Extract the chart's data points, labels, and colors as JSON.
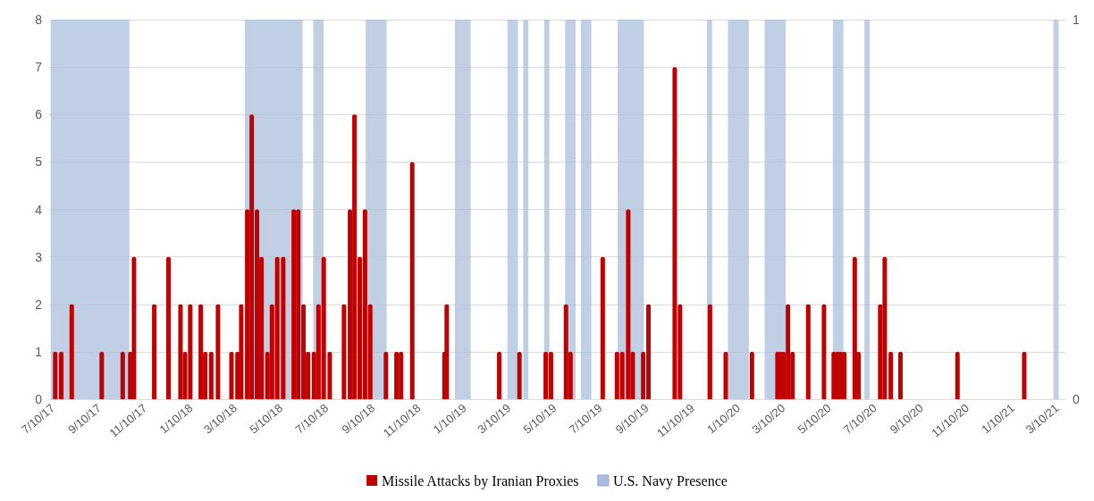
{
  "chart_data": {
    "type": "bar",
    "xlim": [
      "2017-07-05",
      "2021-03-21"
    ],
    "xticks": [
      {
        "value": "2017-07-10",
        "label": "7/10/17"
      },
      {
        "value": "2017-09-10",
        "label": "9/10/17"
      },
      {
        "value": "2017-11-10",
        "label": "11/10/17"
      },
      {
        "value": "2018-01-10",
        "label": "1/10/18"
      },
      {
        "value": "2018-03-10",
        "label": "3/10/18"
      },
      {
        "value": "2018-05-10",
        "label": "5/10/18"
      },
      {
        "value": "2018-07-10",
        "label": "7/10/18"
      },
      {
        "value": "2018-09-10",
        "label": "9/10/18"
      },
      {
        "value": "2018-11-10",
        "label": "11/10/18"
      },
      {
        "value": "2019-01-10",
        "label": "1/10/19"
      },
      {
        "value": "2019-03-10",
        "label": "3/10/19"
      },
      {
        "value": "2019-05-10",
        "label": "5/10/19"
      },
      {
        "value": "2019-07-10",
        "label": "7/10/19"
      },
      {
        "value": "2019-09-10",
        "label": "9/10/19"
      },
      {
        "value": "2019-11-10",
        "label": "11/10/19"
      },
      {
        "value": "2020-01-10",
        "label": "1/10/20"
      },
      {
        "value": "2020-03-10",
        "label": "3/10/20"
      },
      {
        "value": "2020-05-10",
        "label": "5/10/20"
      },
      {
        "value": "2020-07-10",
        "label": "7/10/20"
      },
      {
        "value": "2020-09-10",
        "label": "9/10/20"
      },
      {
        "value": "2020-11-10",
        "label": "11/10/20"
      },
      {
        "value": "2021-01-10",
        "label": "1/10/21"
      },
      {
        "value": "2021-03-10",
        "label": "3/10/21"
      }
    ],
    "ylim": [
      0,
      8
    ],
    "yticks": [
      0,
      1,
      2,
      3,
      4,
      5,
      6,
      7,
      8
    ],
    "y2lim": [
      0,
      1
    ],
    "y2ticks": [
      0,
      1
    ],
    "grid": "y",
    "legend": "bottom",
    "series": [
      {
        "name": "Missile Attacks by Iranian Proxies",
        "color": "#c00000",
        "x": [
          "2017-07-14",
          "2017-07-22",
          "2017-08-05",
          "2017-09-14",
          "2017-10-12",
          "2017-10-22",
          "2017-10-27",
          "2017-11-23",
          "2017-12-12",
          "2017-12-28",
          "2018-01-03",
          "2018-01-10",
          "2018-01-24",
          "2018-01-30",
          "2018-02-07",
          "2018-02-16",
          "2018-03-06",
          "2018-03-14",
          "2018-03-19",
          "2018-03-27",
          "2018-04-02",
          "2018-04-09",
          "2018-04-15",
          "2018-04-23",
          "2018-04-29",
          "2018-05-06",
          "2018-05-14",
          "2018-05-28",
          "2018-06-03",
          "2018-06-10",
          "2018-06-16",
          "2018-06-24",
          "2018-06-30",
          "2018-07-07",
          "2018-07-15",
          "2018-08-03",
          "2018-08-11",
          "2018-08-17",
          "2018-08-24",
          "2018-08-31",
          "2018-09-07",
          "2018-09-28",
          "2018-10-12",
          "2018-10-18",
          "2018-11-02",
          "2018-12-15",
          "2018-12-18",
          "2019-02-26",
          "2019-03-25",
          "2019-04-29",
          "2019-05-06",
          "2019-05-26",
          "2019-06-01",
          "2019-07-14",
          "2019-08-02",
          "2019-08-09",
          "2019-08-17",
          "2019-08-23",
          "2019-09-06",
          "2019-09-13",
          "2019-10-18",
          "2019-10-25",
          "2019-12-04",
          "2019-12-25",
          "2020-01-29",
          "2020-03-03",
          "2020-03-07",
          "2020-03-11",
          "2020-03-17",
          "2020-03-23",
          "2020-04-13",
          "2020-05-04",
          "2020-05-17",
          "2020-05-22",
          "2020-05-26",
          "2020-05-31",
          "2020-06-14",
          "2020-06-19",
          "2020-07-18",
          "2020-07-24",
          "2020-08-01",
          "2020-08-14",
          "2020-10-29",
          "2021-01-26"
        ],
        "values": [
          1,
          1,
          2,
          1,
          1,
          1,
          3,
          2,
          3,
          2,
          1,
          2,
          2,
          1,
          1,
          2,
          1,
          1,
          2,
          4,
          6,
          4,
          3,
          1,
          2,
          3,
          3,
          4,
          4,
          2,
          1,
          1,
          2,
          3,
          1,
          2,
          4,
          6,
          3,
          4,
          2,
          1,
          1,
          1,
          5,
          1,
          2,
          1,
          1,
          1,
          1,
          2,
          1,
          3,
          1,
          1,
          4,
          1,
          1,
          2,
          7,
          2,
          2,
          1,
          1,
          1,
          1,
          1,
          2,
          1,
          2,
          2,
          1,
          1,
          1,
          1,
          3,
          1,
          2,
          3,
          1,
          1,
          1,
          1
        ]
      }
    ],
    "bands": [
      {
        "axis": "x",
        "from": "2017-07-07",
        "to": "2017-10-20",
        "label": "U.S. Navy Presence",
        "color": "#a9bcd9"
      },
      {
        "axis": "x",
        "from": "2018-03-23",
        "to": "2018-06-08",
        "color": "#a9bcd9"
      },
      {
        "axis": "x",
        "from": "2018-06-22",
        "to": "2018-07-06",
        "color": "#a9bcd9"
      },
      {
        "axis": "x",
        "from": "2018-08-31",
        "to": "2018-09-28",
        "color": "#a9bcd9"
      },
      {
        "axis": "x",
        "from": "2018-12-28",
        "to": "2019-01-18",
        "color": "#a9bcd9"
      },
      {
        "axis": "x",
        "from": "2019-03-08",
        "to": "2019-03-22",
        "color": "#a9bcd9"
      },
      {
        "axis": "x",
        "from": "2019-03-29",
        "to": "2019-04-05",
        "color": "#a9bcd9"
      },
      {
        "axis": "x",
        "from": "2019-04-26",
        "to": "2019-05-03",
        "color": "#a9bcd9"
      },
      {
        "axis": "x",
        "from": "2019-05-24",
        "to": "2019-06-07",
        "color": "#a9bcd9"
      },
      {
        "axis": "x",
        "from": "2019-06-14",
        "to": "2019-06-28",
        "color": "#a9bcd9"
      },
      {
        "axis": "x",
        "from": "2019-08-02",
        "to": "2019-09-06",
        "color": "#a9bcd9"
      },
      {
        "axis": "x",
        "from": "2019-11-29",
        "to": "2019-12-06",
        "color": "#a9bcd9"
      },
      {
        "axis": "x",
        "from": "2019-12-27",
        "to": "2020-01-24",
        "color": "#a9bcd9"
      },
      {
        "axis": "x",
        "from": "2020-02-14",
        "to": "2020-03-13",
        "color": "#a9bcd9"
      },
      {
        "axis": "x",
        "from": "2020-05-15",
        "to": "2020-05-29",
        "color": "#a9bcd9"
      },
      {
        "axis": "x",
        "from": "2020-06-26",
        "to": "2020-07-03",
        "color": "#a9bcd9"
      },
      {
        "axis": "x",
        "from": "2021-03-05",
        "to": "2021-03-12",
        "color": "#a9bcd9"
      }
    ]
  }
}
